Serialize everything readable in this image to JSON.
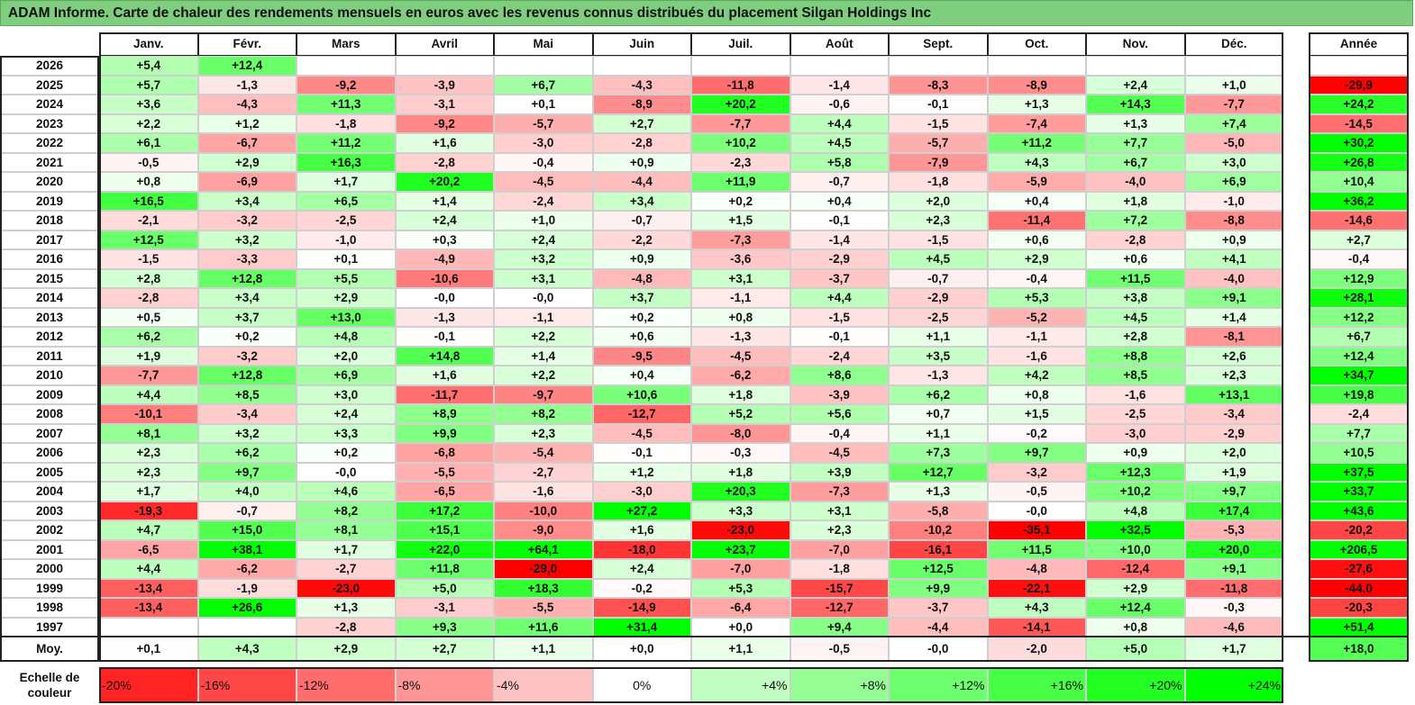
{
  "title": "ADAM Informe. Carte de chaleur des rendements mensuels en euros avec les revenus connus distribués du placement Silgan Holdings Inc",
  "chart_data": {
    "type": "heatmap",
    "title": "ADAM Informe. Carte de chaleur des rendements mensuels en euros avec les revenus connus distribués du placement Silgan Holdings Inc",
    "months": [
      "Janv.",
      "Févr.",
      "Mars",
      "Avril",
      "Mai",
      "Juin",
      "Juil.",
      "Août",
      "Sept.",
      "Oct.",
      "Nov.",
      "Déc."
    ],
    "year_header": "Année",
    "rows": [
      {
        "year": "2026",
        "values": [
          "+5,4",
          "+12,4",
          "",
          "",
          "",
          "",
          "",
          "",
          "",
          "",
          "",
          ""
        ],
        "annual": ""
      },
      {
        "year": "2025",
        "values": [
          "+5,7",
          "-1,3",
          "-9,2",
          "-3,9",
          "+6,7",
          "-4,3",
          "-11,8",
          "-1,4",
          "-8,3",
          "-8,9",
          "+2,4",
          "+1,0"
        ],
        "annual": "-29,9"
      },
      {
        "year": "2024",
        "values": [
          "+3,6",
          "-4,3",
          "+11,3",
          "-3,1",
          "+0,1",
          "-8,9",
          "+20,2",
          "-0,6",
          "-0,1",
          "+1,3",
          "+14,3",
          "-7,7"
        ],
        "annual": "+24,2"
      },
      {
        "year": "2023",
        "values": [
          "+2,2",
          "+1,2",
          "-1,8",
          "-9,2",
          "-5,7",
          "+2,7",
          "-7,7",
          "+4,4",
          "-1,5",
          "-7,4",
          "+1,3",
          "+7,4"
        ],
        "annual": "-14,5"
      },
      {
        "year": "2022",
        "values": [
          "+6,1",
          "-6,7",
          "+11,2",
          "+1,6",
          "-3,0",
          "-2,8",
          "+10,2",
          "+4,5",
          "-5,7",
          "+11,2",
          "+7,7",
          "-5,0"
        ],
        "annual": "+30,2"
      },
      {
        "year": "2021",
        "values": [
          "-0,5",
          "+2,9",
          "+16,3",
          "-2,8",
          "-0,4",
          "+0,9",
          "-2,3",
          "+5,8",
          "-7,9",
          "+4,3",
          "+6,7",
          "+3,0"
        ],
        "annual": "+26,8"
      },
      {
        "year": "2020",
        "values": [
          "+0,8",
          "-6,9",
          "+1,7",
          "+20,2",
          "-4,5",
          "-4,4",
          "+11,9",
          "-0,7",
          "-1,8",
          "-5,9",
          "-4,0",
          "+6,9"
        ],
        "annual": "+10,4"
      },
      {
        "year": "2019",
        "values": [
          "+16,5",
          "+3,4",
          "+6,5",
          "+1,4",
          "-2,4",
          "+3,4",
          "+0,2",
          "+0,4",
          "+2,0",
          "+0,4",
          "+1,8",
          "-1,0"
        ],
        "annual": "+36,2"
      },
      {
        "year": "2018",
        "values": [
          "-2,1",
          "-3,2",
          "-2,5",
          "+2,4",
          "+1,0",
          "-0,7",
          "+1,5",
          "-0,1",
          "+2,3",
          "-11,4",
          "+7,2",
          "-8,8"
        ],
        "annual": "-14,6"
      },
      {
        "year": "2017",
        "values": [
          "+12,5",
          "+3,2",
          "-1,0",
          "+0,3",
          "+2,4",
          "-2,2",
          "-7,3",
          "-1,4",
          "-1,5",
          "+0,6",
          "-2,8",
          "+0,9"
        ],
        "annual": "+2,7"
      },
      {
        "year": "2016",
        "values": [
          "-1,5",
          "-3,3",
          "+0,1",
          "-4,9",
          "+3,2",
          "+0,9",
          "-3,6",
          "-2,9",
          "+4,5",
          "+2,9",
          "+0,6",
          "+4,1"
        ],
        "annual": "-0,4"
      },
      {
        "year": "2015",
        "values": [
          "+2,8",
          "+12,8",
          "+5,5",
          "-10,6",
          "+3,1",
          "-4,8",
          "+3,1",
          "-3,7",
          "-0,7",
          "-0,4",
          "+11,5",
          "-4,0"
        ],
        "annual": "+12,9"
      },
      {
        "year": "2014",
        "values": [
          "-2,8",
          "+3,4",
          "+2,9",
          "-0,0",
          "-0,0",
          "+3,7",
          "-1,1",
          "+4,4",
          "-2,9",
          "+5,3",
          "+3,8",
          "+9,1"
        ],
        "annual": "+28,1"
      },
      {
        "year": "2013",
        "values": [
          "+0,5",
          "+3,7",
          "+13,0",
          "-1,3",
          "-1,1",
          "+0,2",
          "+0,8",
          "-1,5",
          "-2,5",
          "-5,2",
          "+4,5",
          "+1,4"
        ],
        "annual": "+12,2"
      },
      {
        "year": "2012",
        "values": [
          "+6,2",
          "+0,2",
          "+4,8",
          "-0,1",
          "+2,2",
          "+0,6",
          "-1,3",
          "-0,1",
          "+1,1",
          "-1,1",
          "+2,8",
          "-8,1"
        ],
        "annual": "+6,7"
      },
      {
        "year": "2011",
        "values": [
          "+1,9",
          "-3,2",
          "+2,0",
          "+14,8",
          "+1,4",
          "-9,5",
          "-4,5",
          "-2,4",
          "+3,5",
          "-1,6",
          "+8,8",
          "+2,6"
        ],
        "annual": "+12,4"
      },
      {
        "year": "2010",
        "values": [
          "-7,7",
          "+12,8",
          "+6,9",
          "+1,6",
          "+2,2",
          "+0,4",
          "-6,2",
          "+8,6",
          "-1,3",
          "+4,2",
          "+8,5",
          "+2,3"
        ],
        "annual": "+34,7"
      },
      {
        "year": "2009",
        "values": [
          "+4,4",
          "+8,5",
          "+3,0",
          "-11,7",
          "-9,7",
          "+10,6",
          "+1,8",
          "-3,9",
          "+6,2",
          "+0,8",
          "-1,6",
          "+13,1"
        ],
        "annual": "+19,8"
      },
      {
        "year": "2008",
        "values": [
          "-10,1",
          "-3,4",
          "+2,4",
          "+8,9",
          "+8,2",
          "-12,7",
          "+5,2",
          "+5,6",
          "+0,7",
          "+1,5",
          "-2,5",
          "-3,4"
        ],
        "annual": "-2,4"
      },
      {
        "year": "2007",
        "values": [
          "+8,1",
          "+3,2",
          "+3,3",
          "+9,9",
          "+2,3",
          "-4,5",
          "-8,0",
          "-0,4",
          "+1,1",
          "-0,2",
          "-3,0",
          "-2,9"
        ],
        "annual": "+7,7"
      },
      {
        "year": "2006",
        "values": [
          "+2,3",
          "+6,2",
          "+0,2",
          "-6,8",
          "-5,4",
          "-0,1",
          "-0,3",
          "-4,5",
          "+7,3",
          "+9,7",
          "+0,9",
          "+2,0"
        ],
        "annual": "+10,5"
      },
      {
        "year": "2005",
        "values": [
          "+2,3",
          "+9,7",
          "-0,0",
          "-5,5",
          "-2,7",
          "+1,2",
          "+1,8",
          "+3,9",
          "+12,7",
          "-3,2",
          "+12,3",
          "+1,9"
        ],
        "annual": "+37,5"
      },
      {
        "year": "2004",
        "values": [
          "+1,7",
          "+4,0",
          "+4,6",
          "-6,5",
          "-1,6",
          "-3,0",
          "+20,3",
          "-7,3",
          "+1,3",
          "-0,5",
          "+10,2",
          "+9,7"
        ],
        "annual": "+33,7"
      },
      {
        "year": "2003",
        "values": [
          "-19,3",
          "-0,7",
          "+8,2",
          "+17,2",
          "-10,0",
          "+27,2",
          "+3,3",
          "+3,1",
          "-5,8",
          "-0,0",
          "+4,8",
          "+17,4"
        ],
        "annual": "+43,6"
      },
      {
        "year": "2002",
        "values": [
          "+4,7",
          "+15,0",
          "+8,1",
          "+15,1",
          "-9,0",
          "+1,6",
          "-23,0",
          "+2,3",
          "-10,2",
          "-35,1",
          "+32,5",
          "-5,3"
        ],
        "annual": "-20,2"
      },
      {
        "year": "2001",
        "values": [
          "-6,5",
          "+38,1",
          "+1,7",
          "+22,0",
          "+64,1",
          "-18,0",
          "+23,7",
          "-7,0",
          "-16,1",
          "+11,5",
          "+10,0",
          "+20,0"
        ],
        "annual": "+206,5"
      },
      {
        "year": "2000",
        "values": [
          "+4,4",
          "-6,2",
          "-2,7",
          "+11,8",
          "-29,0",
          "+2,4",
          "-7,0",
          "-1,8",
          "+12,5",
          "-4,8",
          "-12,4",
          "+9,1"
        ],
        "annual": "-27,6"
      },
      {
        "year": "1999",
        "values": [
          "-13,4",
          "-1,9",
          "-23,0",
          "+5,0",
          "+18,3",
          "-0,2",
          "+5,3",
          "-15,7",
          "+9,9",
          "-22,1",
          "+2,9",
          "-11,8"
        ],
        "annual": "-44,0"
      },
      {
        "year": "1998",
        "values": [
          "-13,4",
          "+26,6",
          "+1,3",
          "-3,1",
          "-5,5",
          "-14,9",
          "-6,4",
          "-12,7",
          "-3,7",
          "+4,3",
          "+12,4",
          "-0,3"
        ],
        "annual": "-20,3"
      },
      {
        "year": "1997",
        "values": [
          "",
          "",
          "-2,8",
          "+9,3",
          "+11,6",
          "+31,4",
          "+0,0",
          "+9,4",
          "-4,4",
          "-14,1",
          "+0,8",
          "-4,6"
        ],
        "annual": "+51,4"
      }
    ],
    "average": {
      "label": "Moy.",
      "values": [
        "+0,1",
        "+4,3",
        "+2,9",
        "+2,7",
        "+1,1",
        "+0,0",
        "+1,1",
        "-0,5",
        "-0,0",
        "-2,0",
        "+5,0",
        "+1,7"
      ],
      "annual": "+18,0"
    },
    "color_scale": {
      "label": "Echelle de couleur",
      "steps": [
        "-20%",
        "-16%",
        "-12%",
        "-8%",
        "-4%",
        "0%",
        "+4%",
        "+8%",
        "+12%",
        "+16%",
        "+20%",
        "+24%"
      ],
      "colors": {
        "negative": "#ff0000",
        "neutral": "#ffffff",
        "positive": "#00ff00"
      }
    }
  }
}
